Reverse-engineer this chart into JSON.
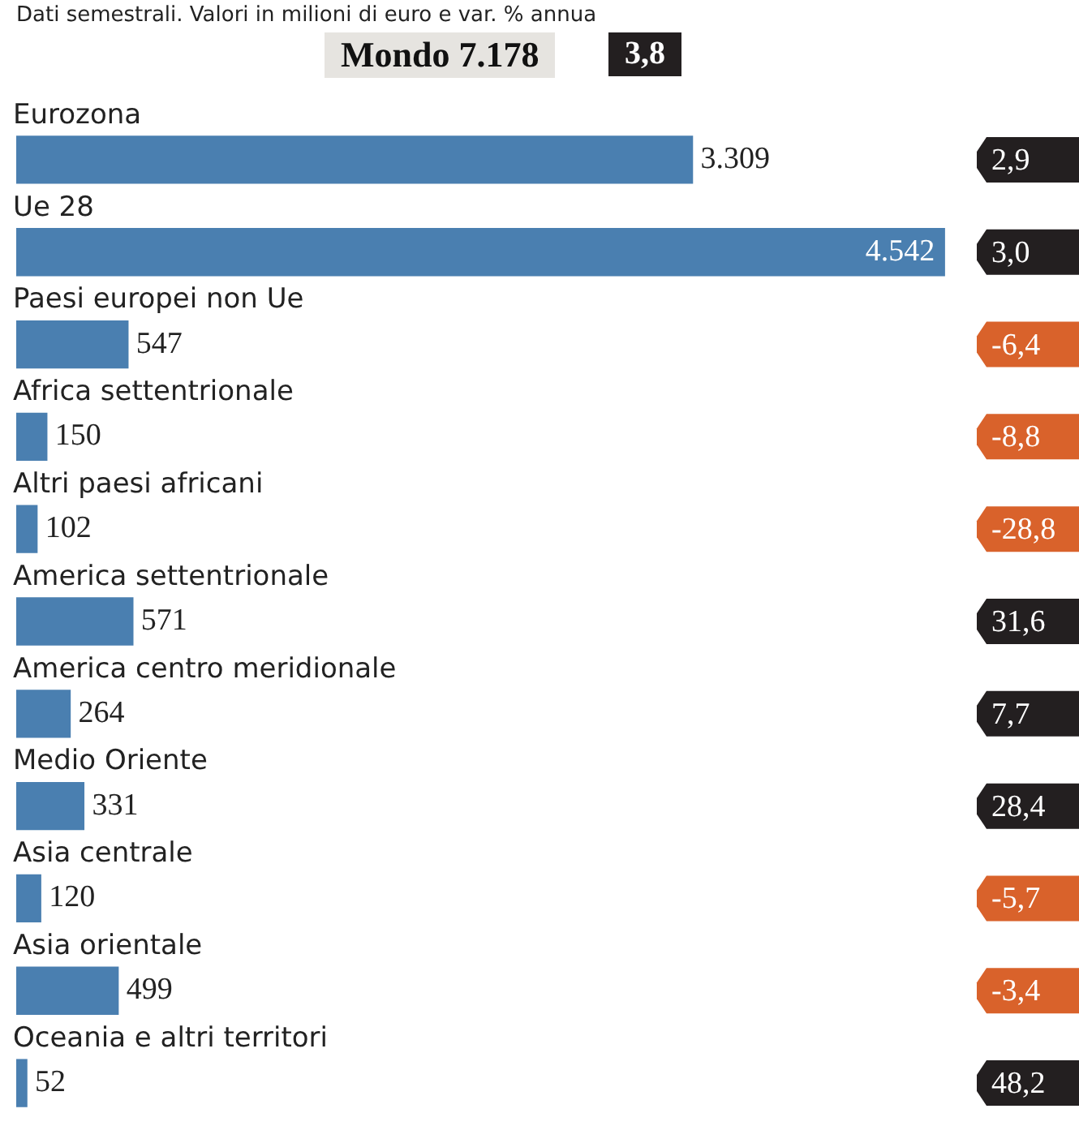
{
  "chart_data": {
    "type": "bar",
    "orientation": "horizontal",
    "subtitle": "Dati semestrali. Valori in milioni di euro e var. % annua",
    "categories": [
      "Eurozona",
      "Ue 28",
      "Paesi europei non Ue",
      "Africa settentrionale",
      "Altri paesi africani",
      "America settentrionale",
      "America centro meridionale",
      "Medio Oriente",
      "Asia centrale",
      "Asia orientale",
      "Oceania e altri territori"
    ],
    "values": [
      3309,
      4542,
      547,
      150,
      102,
      571,
      264,
      331,
      120,
      499,
      52
    ],
    "value_labels": [
      "3.309",
      "4.542",
      "547",
      "150",
      "102",
      "571",
      "264",
      "331",
      "120",
      "499",
      "52"
    ],
    "color": "#4a7fb0",
    "xlim": [
      0,
      5200
    ],
    "legend": false,
    "annotations": [
      "Mondo 7.178",
      "3,8",
      "2,9",
      "3,0",
      "-6,4",
      "-8,8",
      "-28,8",
      "31,6",
      "7,7",
      "28,4",
      "-5,7",
      "-3,4",
      "48,2"
    ]
  }
}
